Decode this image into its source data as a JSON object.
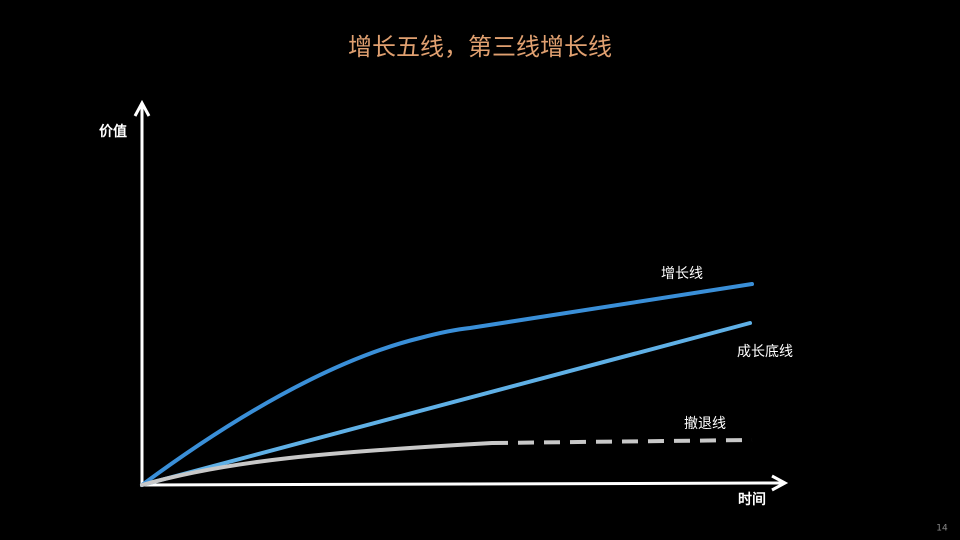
{
  "title": "增长五线，第三线增长线",
  "axes": {
    "y_label": "价值",
    "x_label": "时间"
  },
  "lines": [
    {
      "label": "增长线"
    },
    {
      "label": "成长底线"
    },
    {
      "label": "撤退线"
    }
  ],
  "page_number": "14"
}
